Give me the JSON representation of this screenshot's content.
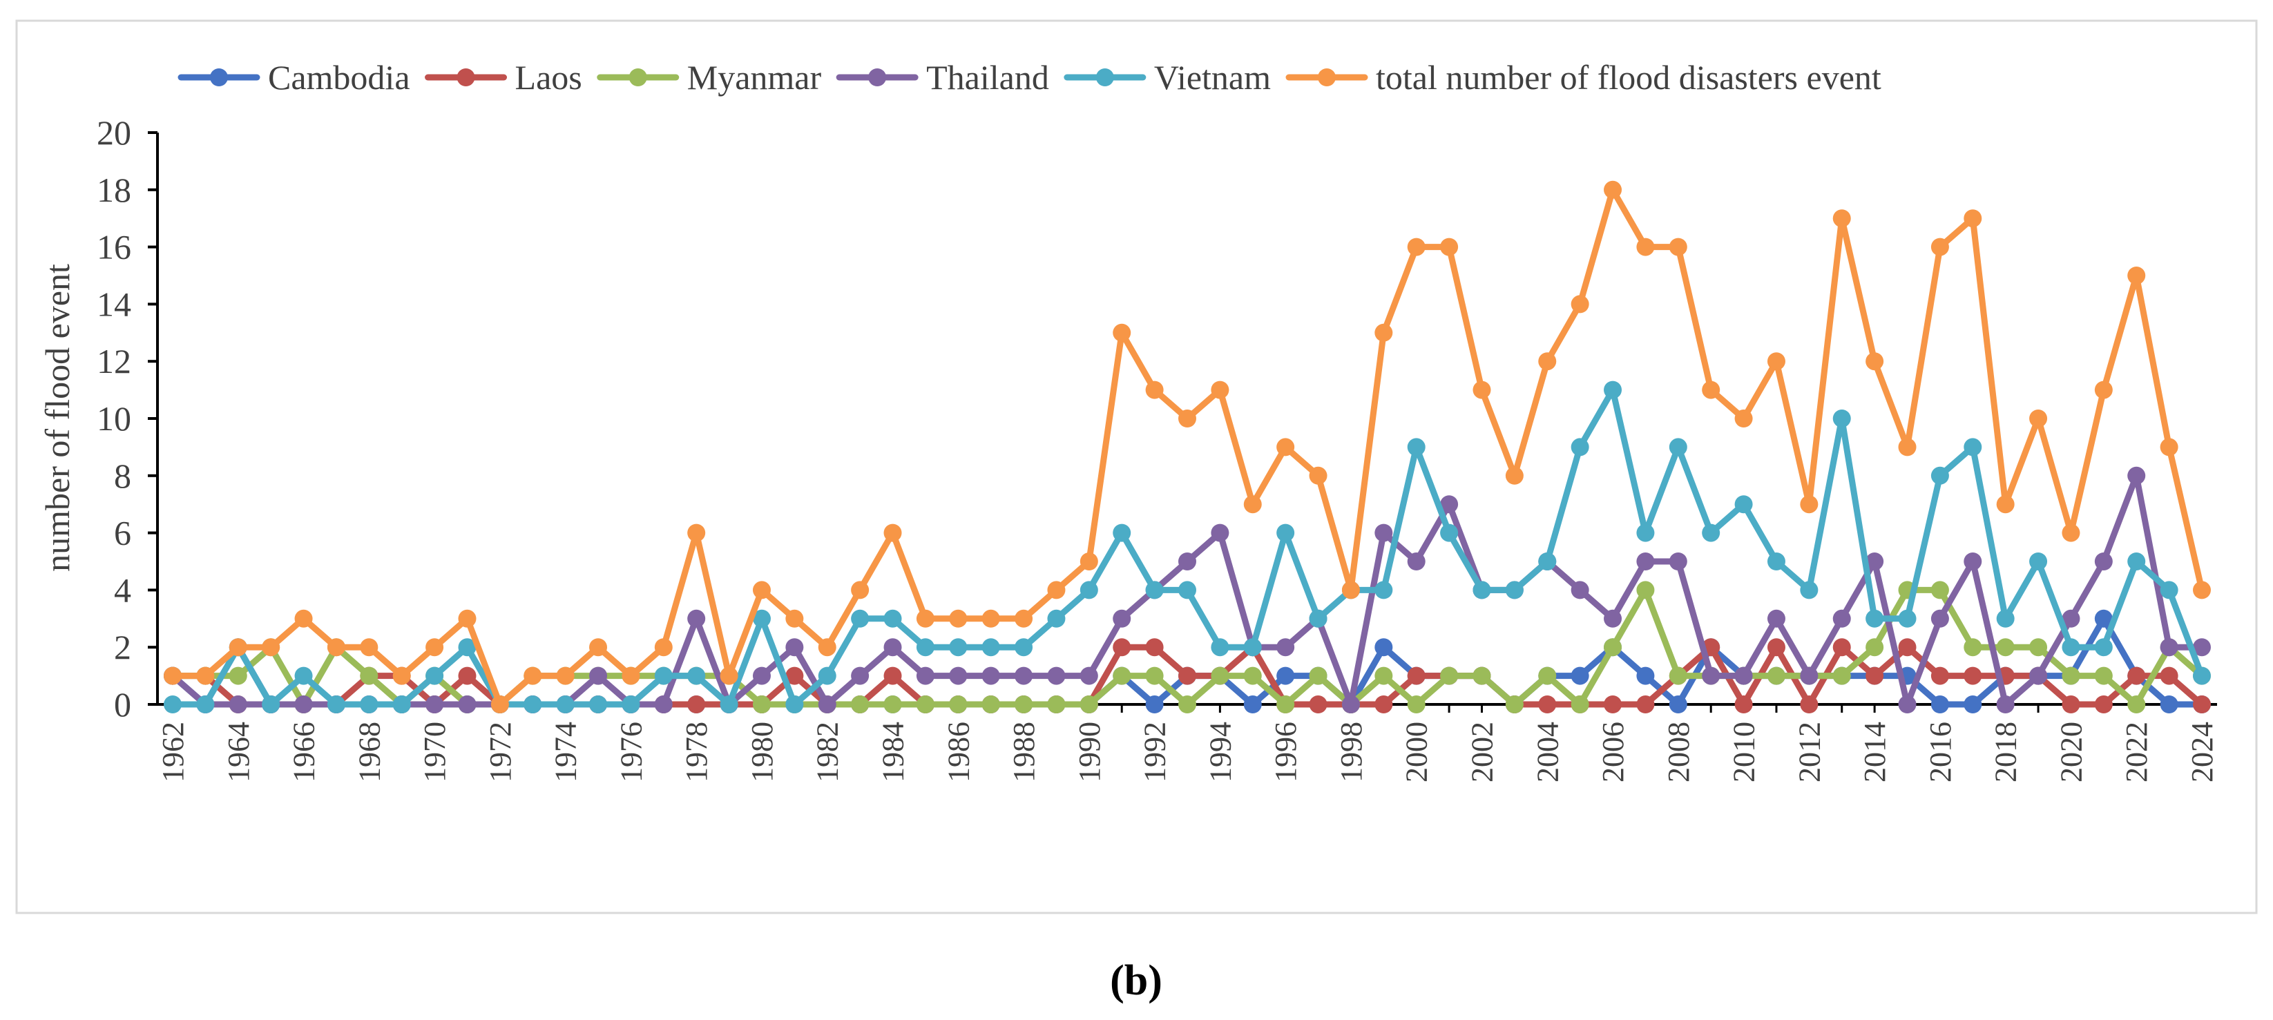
{
  "chart_data": {
    "type": "line",
    "title": "",
    "xlabel": "",
    "ylabel": "number of flood event",
    "ylim": [
      0,
      20
    ],
    "yticks": [
      "0",
      "2",
      "4",
      "6",
      "8",
      "10",
      "12",
      "14",
      "16",
      "18",
      "20"
    ],
    "x": [
      1962,
      1963,
      1964,
      1965,
      1966,
      1967,
      1968,
      1969,
      1970,
      1971,
      1972,
      1973,
      1974,
      1975,
      1976,
      1977,
      1978,
      1979,
      1980,
      1981,
      1982,
      1983,
      1984,
      1985,
      1986,
      1987,
      1988,
      1989,
      1990,
      1991,
      1992,
      1993,
      1994,
      1995,
      1996,
      1997,
      1998,
      1999,
      2000,
      2001,
      2002,
      2003,
      2004,
      2005,
      2006,
      2007,
      2008,
      2009,
      2010,
      2011,
      2012,
      2013,
      2014,
      2015,
      2016,
      2017,
      2018,
      2019,
      2020,
      2021,
      2022,
      2023,
      2024
    ],
    "xticks": [
      "1962",
      "1964",
      "1966",
      "1968",
      "1970",
      "1972",
      "1974",
      "1976",
      "1978",
      "1980",
      "1982",
      "1984",
      "1986",
      "1988",
      "1990",
      "1992",
      "1994",
      "1996",
      "1998",
      "2000",
      "2002",
      "2004",
      "2006",
      "2008",
      "2010",
      "2012",
      "2014",
      "2016",
      "2018",
      "2020",
      "2022",
      "2024"
    ],
    "grid": false,
    "legend_position": "top",
    "series": [
      {
        "name": "Cambodia",
        "color": "#4472c4",
        "values": [
          1,
          0,
          2,
          0,
          0,
          0,
          0,
          0,
          0,
          0,
          0,
          0,
          0,
          0,
          0,
          0,
          0,
          0,
          0,
          0,
          0,
          0,
          0,
          0,
          0,
          0,
          0,
          0,
          0,
          1,
          0,
          1,
          1,
          0,
          1,
          1,
          0,
          2,
          1,
          1,
          1,
          0,
          1,
          1,
          2,
          1,
          0,
          2,
          1,
          1,
          1,
          1,
          1,
          1,
          0,
          0,
          1,
          1,
          1,
          3,
          1,
          0,
          0
        ]
      },
      {
        "name": "Laos",
        "color": "#c0504d",
        "values": [
          1,
          1,
          0,
          0,
          0,
          0,
          1,
          1,
          0,
          1,
          0,
          0,
          0,
          0,
          0,
          0,
          0,
          0,
          0,
          1,
          0,
          0,
          1,
          0,
          0,
          0,
          0,
          0,
          0,
          2,
          2,
          1,
          1,
          2,
          0,
          0,
          0,
          0,
          1,
          1,
          1,
          0,
          0,
          0,
          0,
          0,
          1,
          2,
          0,
          2,
          0,
          2,
          1,
          2,
          1,
          1,
          1,
          1,
          0,
          0,
          1,
          1,
          0
        ]
      },
      {
        "name": "Myanmar",
        "color": "#9bbb59",
        "values": [
          1,
          1,
          1,
          2,
          0,
          2,
          1,
          0,
          1,
          0,
          0,
          1,
          1,
          1,
          1,
          1,
          1,
          1,
          0,
          0,
          0,
          0,
          0,
          0,
          0,
          0,
          0,
          0,
          0,
          1,
          1,
          0,
          1,
          1,
          0,
          1,
          0,
          1,
          0,
          1,
          1,
          0,
          1,
          0,
          2,
          4,
          1,
          1,
          1,
          1,
          1,
          1,
          2,
          4,
          4,
          2,
          2,
          2,
          1,
          1,
          0,
          2,
          1
        ]
      },
      {
        "name": "Thailand",
        "color": "#8064a2",
        "values": [
          1,
          0,
          0,
          0,
          0,
          0,
          0,
          0,
          0,
          0,
          0,
          0,
          0,
          1,
          0,
          0,
          3,
          0,
          1,
          2,
          0,
          1,
          2,
          1,
          1,
          1,
          1,
          1,
          1,
          3,
          4,
          5,
          6,
          2,
          2,
          3,
          0,
          6,
          5,
          7,
          4,
          4,
          5,
          4,
          3,
          5,
          5,
          1,
          1,
          3,
          1,
          3,
          5,
          0,
          3,
          5,
          0,
          1,
          3,
          5,
          8,
          2,
          2
        ]
      },
      {
        "name": "Vietnam",
        "color": "#4bacc6",
        "values": [
          0,
          0,
          2,
          0,
          1,
          0,
          0,
          0,
          1,
          2,
          0,
          0,
          0,
          0,
          0,
          1,
          1,
          0,
          3,
          0,
          1,
          3,
          3,
          2,
          2,
          2,
          2,
          3,
          4,
          6,
          4,
          4,
          2,
          2,
          6,
          3,
          4,
          4,
          9,
          6,
          4,
          4,
          5,
          9,
          11,
          6,
          9,
          6,
          7,
          5,
          4,
          10,
          3,
          3,
          8,
          9,
          3,
          5,
          2,
          2,
          5,
          4,
          1
        ]
      },
      {
        "name": "total number of flood disasters event",
        "color": "#f79646",
        "values": [
          1,
          1,
          2,
          2,
          3,
          2,
          2,
          1,
          2,
          3,
          0,
          1,
          1,
          2,
          1,
          2,
          6,
          1,
          4,
          3,
          2,
          4,
          6,
          3,
          3,
          3,
          3,
          4,
          5,
          13,
          11,
          10,
          11,
          7,
          9,
          8,
          4,
          13,
          16,
          16,
          11,
          8,
          12,
          14,
          18,
          16,
          16,
          11,
          10,
          12,
          7,
          17,
          12,
          9,
          16,
          17,
          7,
          10,
          6,
          11,
          15,
          9,
          4
        ]
      }
    ]
  },
  "caption": "(b)"
}
